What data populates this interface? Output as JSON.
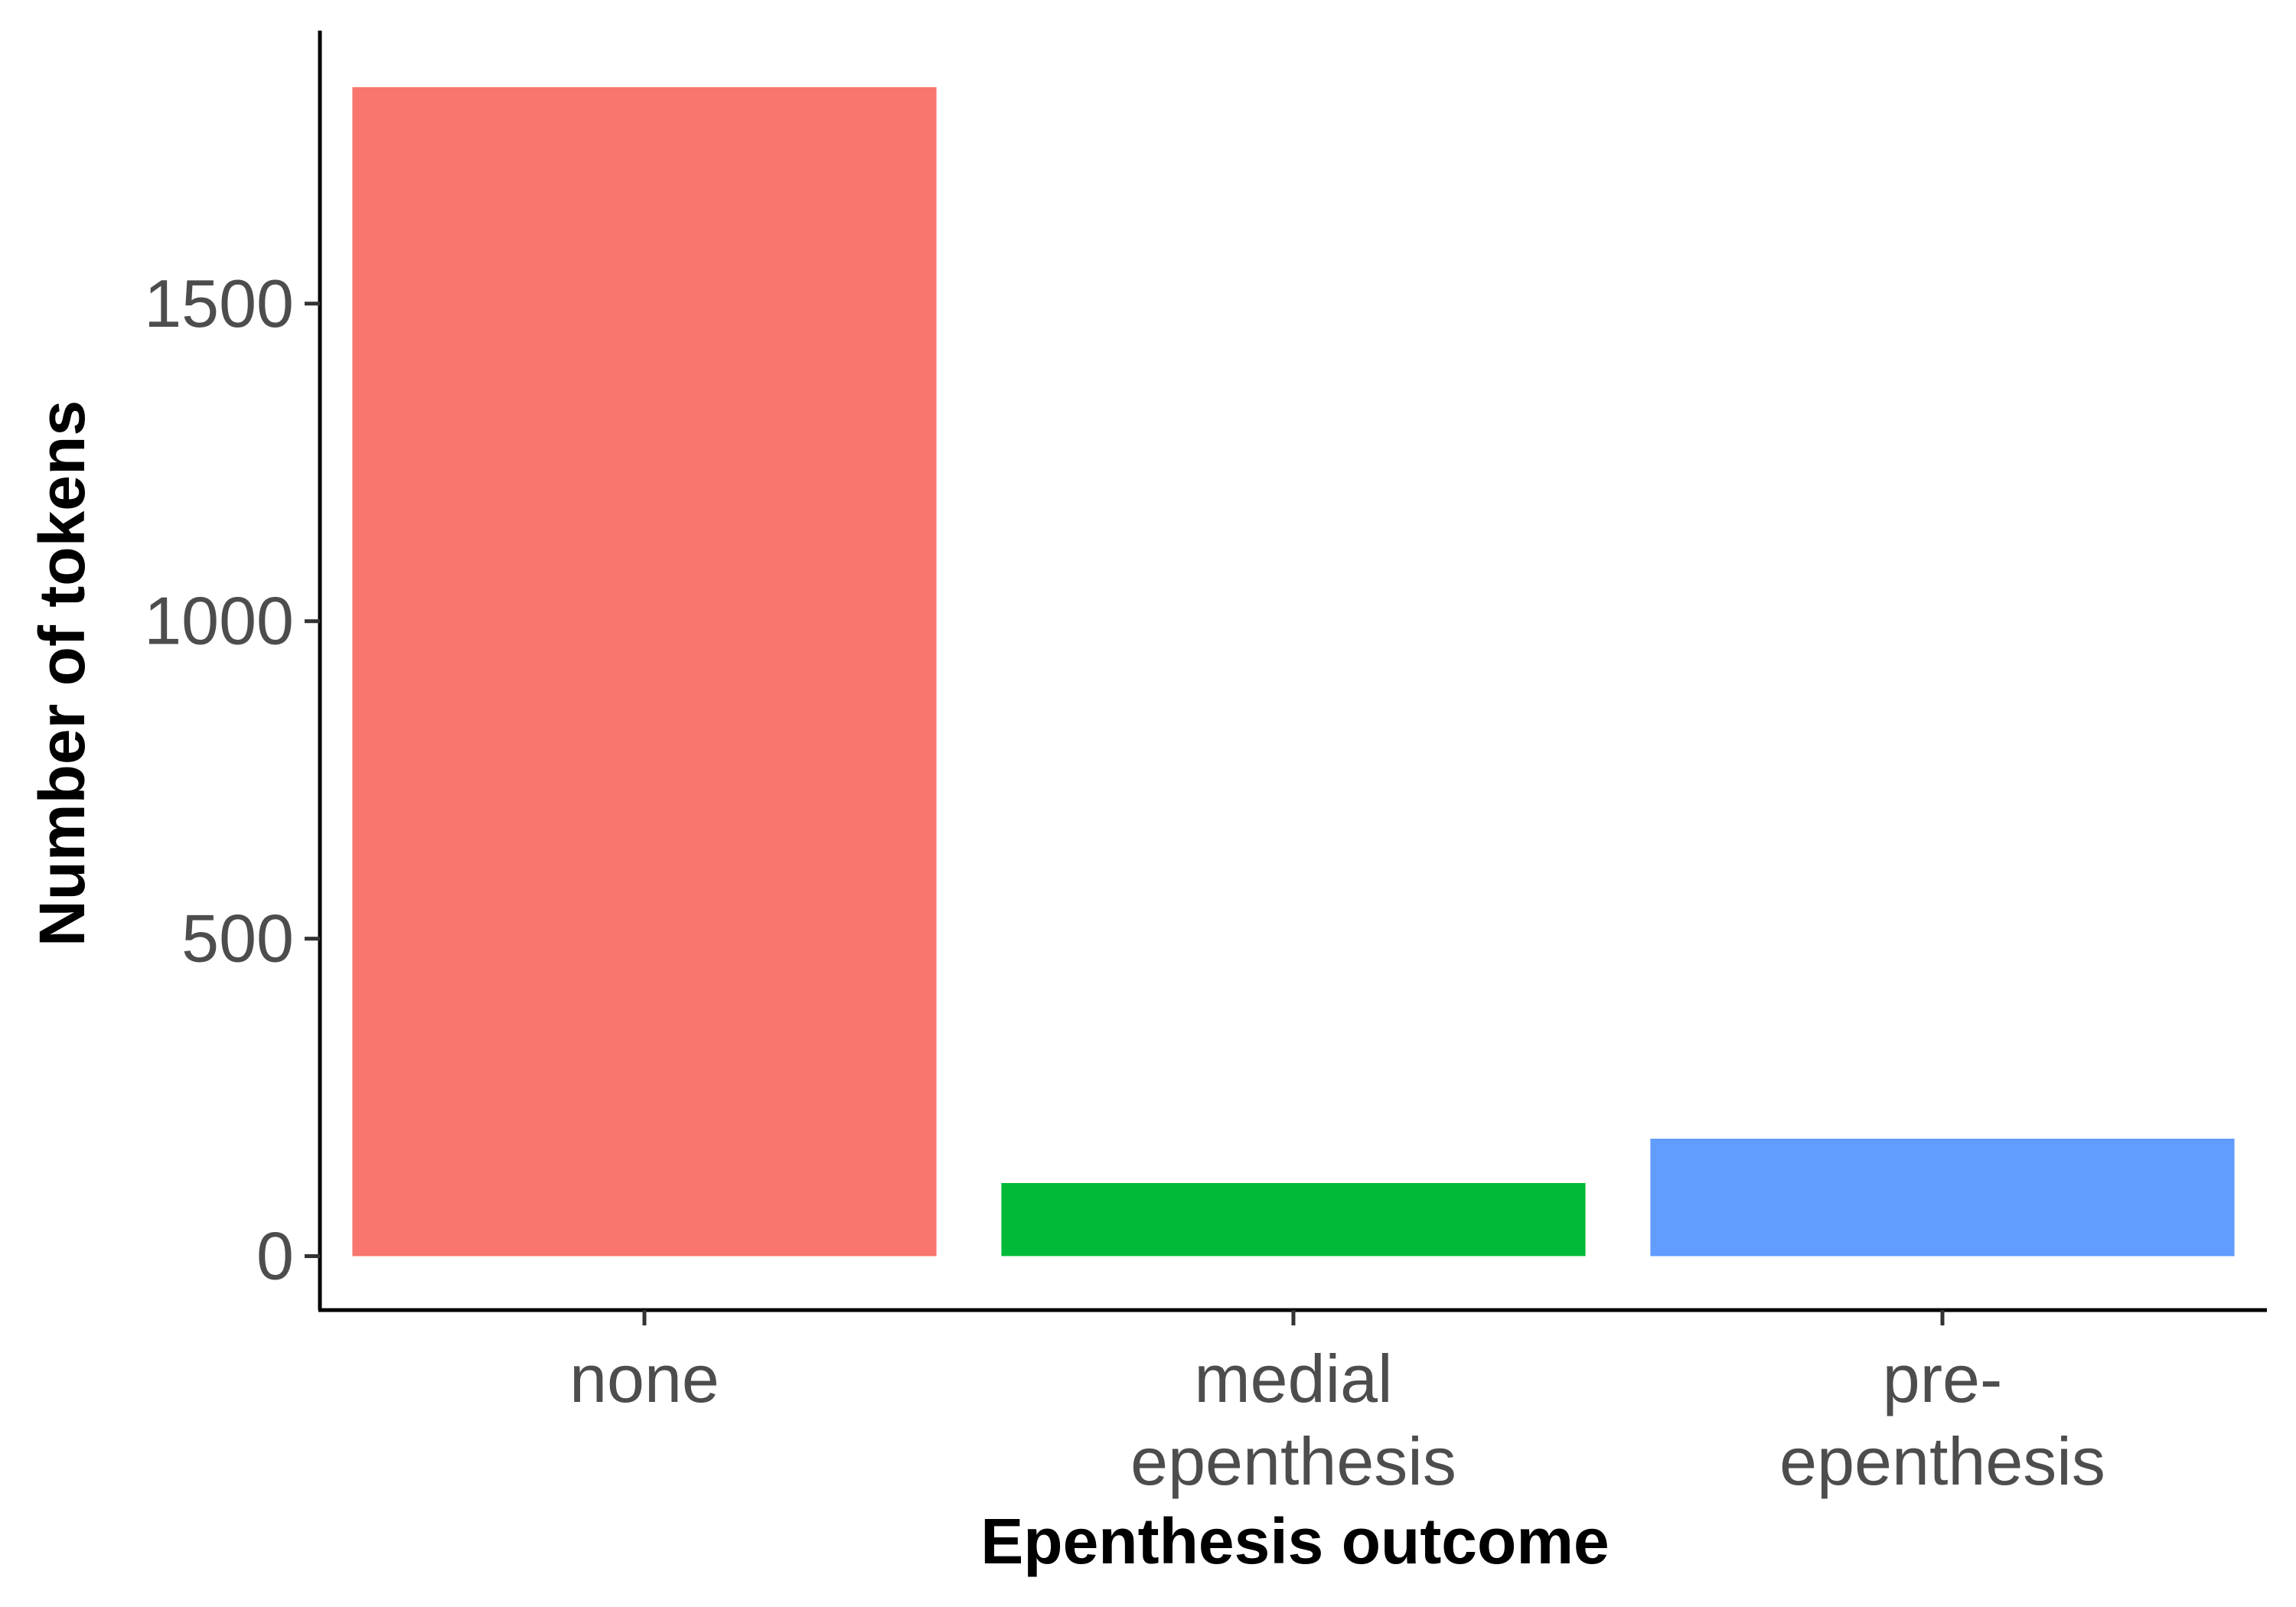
{
  "chart_data": {
    "type": "bar",
    "title": "",
    "xlabel": "Epenthesis outcome",
    "ylabel": "Number of tokens",
    "categories": [
      {
        "lines": [
          "none"
        ]
      },
      {
        "lines": [
          "medial",
          "epenthesis"
        ]
      },
      {
        "lines": [
          "pre-",
          "epenthesis"
        ]
      }
    ],
    "values": [
      1841,
      115,
      185
    ],
    "colors": [
      "#F8766D",
      "#00BA38",
      "#619CFF"
    ],
    "yticks": [
      "0",
      "500",
      "1000",
      "1500"
    ],
    "ylim": [
      -85,
      1930
    ],
    "grid": false,
    "legend": "none"
  }
}
